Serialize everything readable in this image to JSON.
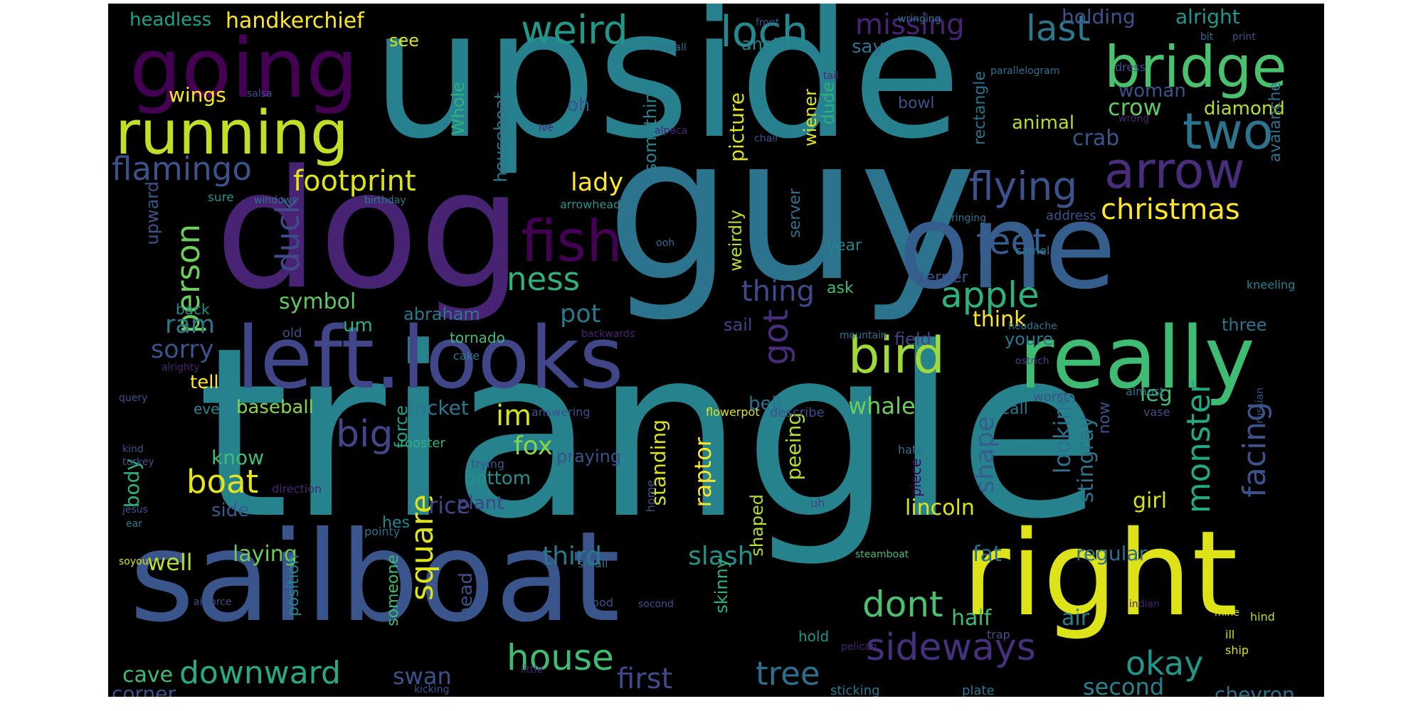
{
  "palette": {
    "background": "#000000",
    "page": "#ffffff",
    "colormap": "viridis"
  },
  "words": [
    {
      "text": "triangle",
      "color": "#26838e"
    },
    {
      "text": "upside",
      "color": "#27808e"
    },
    {
      "text": "guy",
      "color": "#2c738e"
    },
    {
      "text": "dog",
      "color": "#482374"
    },
    {
      "text": "sailboat",
      "color": "#39558c"
    },
    {
      "text": "left.looks",
      "color": "#404688"
    },
    {
      "text": "one",
      "color": "#355e8d"
    },
    {
      "text": "right",
      "color": "#dde318"
    },
    {
      "text": "going",
      "color": "#440154"
    },
    {
      "text": "really",
      "color": "#3fbc73"
    },
    {
      "text": "running",
      "color": "#c0df25"
    },
    {
      "text": "bridge",
      "color": "#4ac16d"
    },
    {
      "text": "arrow",
      "color": "#472d7b"
    },
    {
      "text": "two",
      "color": "#2c738e"
    },
    {
      "text": "fish",
      "color": "#440154"
    },
    {
      "text": "weird",
      "color": "#1f988b"
    },
    {
      "text": "loch",
      "color": "#23898e"
    },
    {
      "text": "bird",
      "color": "#a0da39"
    },
    {
      "text": "flying",
      "color": "#3b528b"
    },
    {
      "text": "sideways",
      "color": "#46307e"
    },
    {
      "text": "feet",
      "color": "#365c8d"
    },
    {
      "text": "apple",
      "color": "#2db27d"
    },
    {
      "text": "duck",
      "color": "#3e4a89"
    },
    {
      "text": "person",
      "color": "#6ccd5a"
    },
    {
      "text": "house",
      "color": "#3fbc73"
    },
    {
      "text": "downward",
      "color": "#25ab82"
    },
    {
      "text": "dont",
      "color": "#4ac16d"
    },
    {
      "text": "ness",
      "color": "#2db27d"
    },
    {
      "text": "flamingo",
      "color": "#3b528b"
    },
    {
      "text": "footprint",
      "color": "#dde318"
    },
    {
      "text": "christmas",
      "color": "#fde725"
    },
    {
      "text": "monster",
      "color": "#22a884"
    },
    {
      "text": "facing",
      "color": "#3b528b"
    },
    {
      "text": "boat",
      "color": "#e5e419"
    },
    {
      "text": "big",
      "color": "#404688"
    },
    {
      "text": "tree",
      "color": "#2d708e"
    },
    {
      "text": "okay",
      "color": "#1f988b"
    },
    {
      "text": "first",
      "color": "#3e4a89"
    },
    {
      "text": "missing",
      "color": "#482374"
    },
    {
      "text": "last",
      "color": "#2a788e"
    },
    {
      "text": "got",
      "color": "#472d7b"
    },
    {
      "text": "square",
      "color": "#dde318"
    },
    {
      "text": "thing",
      "color": "#3e4a89"
    },
    {
      "text": "handkerchief",
      "color": "#fde725"
    },
    {
      "text": "headless",
      "color": "#1fa088"
    },
    {
      "text": "holding",
      "color": "#3b528b"
    },
    {
      "text": "alright",
      "color": "#1f988b"
    },
    {
      "text": "shape",
      "color": "#355e8d"
    },
    {
      "text": "slash",
      "color": "#21918c"
    },
    {
      "text": "third",
      "color": "#2a788e"
    },
    {
      "text": "second",
      "color": "#25838e"
    },
    {
      "text": "chevron",
      "color": "#2c728e"
    },
    {
      "text": "symbol",
      "color": "#5ec962"
    },
    {
      "text": "wings",
      "color": "#fde725"
    },
    {
      "text": "woman",
      "color": "#3b528b"
    },
    {
      "text": "crow",
      "color": "#5ec962"
    },
    {
      "text": "crab",
      "color": "#39568c"
    },
    {
      "text": "diamond",
      "color": "#b5de2b"
    },
    {
      "text": "animal",
      "color": "#b5de2b"
    },
    {
      "text": "ram",
      "color": "#2a788e"
    },
    {
      "text": "sorry",
      "color": "#3b528b"
    },
    {
      "text": "lady",
      "color": "#fde725"
    },
    {
      "text": "pot",
      "color": "#2a788e"
    },
    {
      "text": "rice",
      "color": "#414487"
    },
    {
      "text": "im",
      "color": "#d8e219"
    },
    {
      "text": "fox",
      "color": "#86d549"
    },
    {
      "text": "rocket",
      "color": "#2a788e"
    },
    {
      "text": "lincoln",
      "color": "#dde318"
    },
    {
      "text": "girl",
      "color": "#d8e219"
    },
    {
      "text": "fat",
      "color": "#2c728e"
    },
    {
      "text": "regular",
      "color": "#2c728e"
    },
    {
      "text": "half",
      "color": "#3fbc73"
    },
    {
      "text": "air",
      "color": "#26828e"
    },
    {
      "text": "swan",
      "color": "#3b528b"
    },
    {
      "text": "cave",
      "color": "#3fbc73"
    },
    {
      "text": "corner",
      "color": "#3b528b"
    },
    {
      "text": "laying",
      "color": "#6ccd5a"
    },
    {
      "text": "well",
      "color": "#b5de2b"
    },
    {
      "text": "side",
      "color": "#365c8d"
    },
    {
      "text": "know",
      "color": "#3fbc73"
    },
    {
      "text": "body",
      "color": "#2db27d"
    },
    {
      "text": "baseball",
      "color": "#86d549"
    },
    {
      "text": "tell",
      "color": "#fde725"
    },
    {
      "text": "leg",
      "color": "#3fbc73"
    },
    {
      "text": "whale",
      "color": "#6ccd5a"
    },
    {
      "text": "bell",
      "color": "#2c728e"
    },
    {
      "text": "think",
      "color": "#fde725"
    },
    {
      "text": "looking",
      "color": "#2c728e"
    },
    {
      "text": "stingray",
      "color": "#2c728e"
    },
    {
      "text": "now",
      "color": "#3b528b"
    },
    {
      "text": "raptor",
      "color": "#fde725"
    },
    {
      "text": "standing",
      "color": "#d8e219"
    },
    {
      "text": "peeing",
      "color": "#b5de2b"
    },
    {
      "text": "shaped",
      "color": "#b5de2b"
    },
    {
      "text": "skinny",
      "color": "#2db27d"
    },
    {
      "text": "position",
      "color": "#25838e"
    },
    {
      "text": "head",
      "color": "#3b528b"
    },
    {
      "text": "someone",
      "color": "#3fbc73"
    },
    {
      "text": "abraham",
      "color": "#2a788e"
    },
    {
      "text": "um",
      "color": "#2db27d"
    },
    {
      "text": "bottom",
      "color": "#21918c"
    },
    {
      "text": "plant",
      "color": "#414487"
    },
    {
      "text": "praying",
      "color": "#3b528b"
    },
    {
      "text": "force",
      "color": "#1fa088"
    },
    {
      "text": "hes",
      "color": "#25838e"
    },
    {
      "text": "picture",
      "color": "#d8e219"
    },
    {
      "text": "something",
      "color": "#26828e"
    },
    {
      "text": "houseboat",
      "color": "#2a788e"
    },
    {
      "text": "Whole",
      "color": "#2db27d"
    },
    {
      "text": "oh",
      "color": "#3b528b"
    },
    {
      "text": "see",
      "color": "#d8e219"
    },
    {
      "text": "another",
      "color": "#25838e"
    },
    {
      "text": "say",
      "color": "#2c728e"
    },
    {
      "text": "dude",
      "color": "#2db27d"
    },
    {
      "text": "wiener",
      "color": "#dde318"
    },
    {
      "text": "rectangle",
      "color": "#2c728e"
    },
    {
      "text": "avalanche",
      "color": "#2c728e"
    },
    {
      "text": "bowl",
      "color": "#3b528b"
    },
    {
      "text": "upward",
      "color": "#3b528b"
    },
    {
      "text": "server",
      "color": "#2c728e"
    },
    {
      "text": "weirdly",
      "color": "#b5de2b"
    },
    {
      "text": "year",
      "color": "#25838e"
    },
    {
      "text": "ask",
      "color": "#3fbc73"
    },
    {
      "text": "terrier",
      "color": "#3b528b"
    },
    {
      "text": "field",
      "color": "#414487"
    },
    {
      "text": "youre",
      "color": "#2a788e"
    },
    {
      "text": "call",
      "color": "#2a788e"
    },
    {
      "text": "three",
      "color": "#2c728e"
    },
    {
      "text": "sail",
      "color": "#414487"
    },
    {
      "text": "sure",
      "color": "#21918c"
    },
    {
      "text": "windows",
      "color": "#2c728e"
    },
    {
      "text": "birthday",
      "color": "#2a788e"
    },
    {
      "text": "arrowhead",
      "color": "#21918c"
    },
    {
      "text": "ringing",
      "color": "#2c728e"
    },
    {
      "text": "address",
      "color": "#3b528b"
    },
    {
      "text": "camel",
      "color": "#2a788e"
    },
    {
      "text": "kneeling",
      "color": "#25838e"
    },
    {
      "text": "ooh",
      "color": "#2c728e"
    },
    {
      "text": "mountain",
      "color": "#2c728e"
    },
    {
      "text": "headache",
      "color": "#2a788e"
    },
    {
      "text": "ostrich",
      "color": "#414487"
    },
    {
      "text": "backwards",
      "color": "#482374"
    },
    {
      "text": "alrighty",
      "color": "#482374"
    },
    {
      "text": "query",
      "color": "#3b528b"
    },
    {
      "text": "even",
      "color": "#25838e"
    },
    {
      "text": "answering",
      "color": "#3b528b"
    },
    {
      "text": "describe",
      "color": "#3b528b"
    },
    {
      "text": "flowerpot",
      "color": "#dde318"
    },
    {
      "text": "worst",
      "color": "#3b528b"
    },
    {
      "text": "almost",
      "color": "#2c728e"
    },
    {
      "text": "vase",
      "color": "#3b528b"
    },
    {
      "text": "russian",
      "color": "#3b528b"
    },
    {
      "text": "old",
      "color": "#3b528b"
    },
    {
      "text": "back",
      "color": "#21918c"
    },
    {
      "text": "tornado",
      "color": "#3fbc73"
    },
    {
      "text": "cake",
      "color": "#2a788e"
    },
    {
      "text": "kind",
      "color": "#3b528b"
    },
    {
      "text": "turkey",
      "color": "#3b528b"
    },
    {
      "text": "rooster",
      "color": "#2db27d"
    },
    {
      "text": "trying",
      "color": "#3b528b"
    },
    {
      "text": "hate",
      "color": "#2c728e"
    },
    {
      "text": "piece",
      "color": "#440154"
    },
    {
      "text": "direction",
      "color": "#482374"
    },
    {
      "text": "home",
      "color": "#3b528b"
    },
    {
      "text": "uh",
      "color": "#414487"
    },
    {
      "text": "jesus",
      "color": "#3b528b"
    },
    {
      "text": "ear",
      "color": "#2a788e"
    },
    {
      "text": "pointy",
      "color": "#2c728e"
    },
    {
      "text": "soyou",
      "color": "#d8e219"
    },
    {
      "text": "small",
      "color": "#2c728e"
    },
    {
      "text": "steamboat",
      "color": "#3fbc73"
    },
    {
      "text": "airforce",
      "color": "#3b528b"
    },
    {
      "text": "good",
      "color": "#3b528b"
    },
    {
      "text": "socond",
      "color": "#3b528b"
    },
    {
      "text": "indian",
      "color": "#482374"
    },
    {
      "text": "mine",
      "color": "#d8e219"
    },
    {
      "text": "hind",
      "color": "#b5de2b"
    },
    {
      "text": "hold",
      "color": "#21918c"
    },
    {
      "text": "trap",
      "color": "#3b528b"
    },
    {
      "text": "pelican",
      "color": "#482374"
    },
    {
      "text": "ill",
      "color": "#d8e219"
    },
    {
      "text": "ship",
      "color": "#d8e219"
    },
    {
      "text": "little",
      "color": "#482374"
    },
    {
      "text": "kicking",
      "color": "#3b528b"
    },
    {
      "text": "sticking",
      "color": "#2a788e"
    },
    {
      "text": "plate",
      "color": "#2a788e"
    },
    {
      "text": "wringing",
      "color": "#2c728e"
    },
    {
      "text": "front",
      "color": "#3b528b"
    },
    {
      "text": "football",
      "color": "#2c728e"
    },
    {
      "text": "parallelogram",
      "color": "#2c728e"
    },
    {
      "text": "dress",
      "color": "#3b528b"
    },
    {
      "text": "bit",
      "color": "#2c728e"
    },
    {
      "text": "print",
      "color": "#3b528b"
    },
    {
      "text": "wrong",
      "color": "#482374"
    },
    {
      "text": "tail",
      "color": "#482374"
    },
    {
      "text": "salsa",
      "color": "#3b528b"
    },
    {
      "text": "ive",
      "color": "#482374"
    },
    {
      "text": "alpaca",
      "color": "#482374"
    },
    {
      "text": "chair",
      "color": "#3b528b"
    }
  ]
}
